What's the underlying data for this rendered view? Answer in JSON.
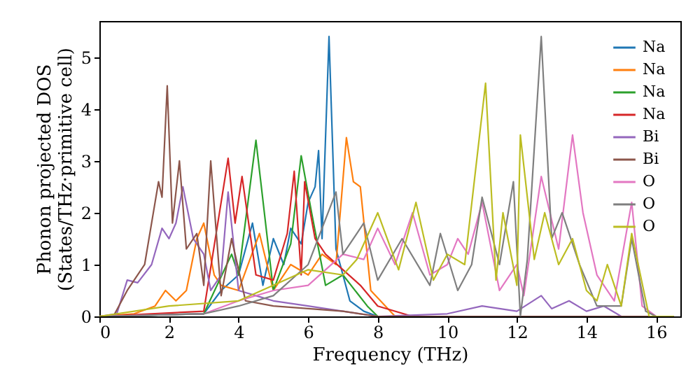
{
  "chart_data": {
    "type": "line",
    "xlabel": "Frequency (THz)",
    "ylabel": "Phonon projected DOS\n(States/THz·primitive cell)",
    "xlim": [
      0,
      16.7
    ],
    "ylim": [
      0,
      5.7
    ],
    "xticks": [
      0,
      2,
      4,
      6,
      8,
      10,
      12,
      14,
      16
    ],
    "yticks": [
      0,
      1,
      2,
      3,
      4,
      5
    ],
    "grid": false,
    "legend": "top right",
    "marker": "none",
    "line_style": "solid",
    "series": [
      {
        "name": "Na",
        "color": "#1f77b4",
        "x": [
          0,
          3,
          3.5,
          4.0,
          4.4,
          4.7,
          5,
          5.3,
          5.5,
          5.8,
          6.0,
          6.2,
          6.3,
          6.4,
          6.6,
          6.8,
          7.2,
          7.6,
          8,
          16.5
        ],
        "values": [
          0,
          0.05,
          0.5,
          0.8,
          1.8,
          0.6,
          1.5,
          1.0,
          1.7,
          1.4,
          2.2,
          2.5,
          3.2,
          1.5,
          5.4,
          1.3,
          0.3,
          0.1,
          0,
          0
        ]
      },
      {
        "name": "Na",
        "color": "#ff7f0e",
        "x": [
          0,
          1,
          1.6,
          1.9,
          2.2,
          2.5,
          2.8,
          3.0,
          3.3,
          3.5,
          4.0,
          4.6,
          5,
          5.5,
          6,
          6.4,
          6.8,
          7.1,
          7.3,
          7.5,
          7.8,
          8.5,
          16.5
        ],
        "values": [
          0,
          0.05,
          0.2,
          0.5,
          0.3,
          0.5,
          1.5,
          1.8,
          0.8,
          0.6,
          0.5,
          1.6,
          0.5,
          1.0,
          0.8,
          1.2,
          1.0,
          3.45,
          2.6,
          2.5,
          0.5,
          0,
          0
        ]
      },
      {
        "name": "Na",
        "color": "#2ca02c",
        "x": [
          0,
          3,
          3.8,
          4.0,
          4.5,
          5.0,
          5.5,
          5.8,
          6.1,
          6.5,
          7.0,
          7.7,
          8,
          16.5
        ],
        "values": [
          0,
          0.05,
          1.2,
          0.8,
          3.4,
          0.5,
          1.4,
          3.1,
          2.0,
          0.6,
          0.8,
          0.2,
          0,
          0
        ]
      },
      {
        "name": "Na",
        "color": "#d62728",
        "x": [
          0,
          3,
          3.7,
          3.9,
          4.1,
          4.5,
          5.0,
          5.4,
          5.6,
          5.8,
          5.9,
          6.2,
          6.5,
          7.0,
          7.5,
          8,
          9,
          16.5
        ],
        "values": [
          0,
          0.1,
          3.05,
          1.8,
          2.7,
          0.8,
          0.7,
          1.6,
          2.8,
          0.8,
          2.6,
          1.5,
          1.2,
          0.9,
          0.6,
          0.2,
          0,
          0
        ]
      },
      {
        "name": "Bi",
        "color": "#9467bd",
        "x": [
          0,
          0.5,
          0.8,
          1.1,
          1.5,
          1.8,
          2.0,
          2.2,
          2.4,
          2.7,
          3.0,
          3.2,
          3.5,
          3.7,
          4.0,
          4.5,
          5,
          6,
          7,
          8,
          10,
          11,
          12,
          12.7,
          13,
          13.5,
          14,
          14.5,
          15,
          16.5
        ],
        "values": [
          0,
          0.05,
          0.7,
          0.65,
          1.0,
          1.7,
          1.5,
          1.8,
          2.5,
          1.5,
          1.2,
          0.5,
          0.8,
          2.4,
          0.5,
          0.4,
          0.3,
          0.2,
          0.1,
          0,
          0.05,
          0.2,
          0.1,
          0.4,
          0.15,
          0.3,
          0.1,
          0.2,
          0,
          0
        ]
      },
      {
        "name": "Bi",
        "color": "#8c564b",
        "x": [
          0,
          0.4,
          0.8,
          1.3,
          1.6,
          1.7,
          1.8,
          1.95,
          2.1,
          2.3,
          2.5,
          2.8,
          3.0,
          3.2,
          3.5,
          3.8,
          4.2,
          5,
          6,
          7,
          8,
          16.5
        ],
        "values": [
          0,
          0,
          0.5,
          1.0,
          2.2,
          2.6,
          2.3,
          4.45,
          1.8,
          3.0,
          1.3,
          1.6,
          0.6,
          3.0,
          0.4,
          1.5,
          0.3,
          0.2,
          0.15,
          0.1,
          0,
          0
        ]
      },
      {
        "name": "O",
        "color": "#e377c2",
        "x": [
          0,
          3,
          4,
          5,
          6,
          7,
          7.6,
          8,
          8.5,
          9,
          9.5,
          10,
          10.3,
          10.6,
          11,
          11.5,
          12,
          12.2,
          12.7,
          13.2,
          13.6,
          13.9,
          14.3,
          14.8,
          15.3,
          15.6,
          16,
          16.5
        ],
        "values": [
          0,
          0.05,
          0.3,
          0.5,
          0.6,
          1.2,
          1.1,
          1.7,
          1.0,
          2.0,
          0.8,
          1.0,
          1.5,
          1.2,
          2.2,
          0.5,
          1.0,
          0.4,
          2.7,
          1.3,
          3.5,
          2.0,
          0.8,
          0.3,
          2.2,
          0.2,
          0,
          0
        ]
      },
      {
        "name": "O",
        "color": "#7f7f7f",
        "x": [
          0,
          3,
          4,
          5,
          6,
          6.8,
          7,
          7.6,
          8,
          8.7,
          9.5,
          9.8,
          10.3,
          10.7,
          11,
          11.5,
          11.9,
          12.1,
          12.3,
          12.7,
          13.0,
          13.3,
          13.8,
          14.3,
          15,
          15.3,
          15.7,
          16,
          16.5
        ],
        "values": [
          0,
          0.05,
          0.2,
          0.4,
          1.0,
          2.4,
          1.2,
          1.8,
          0.7,
          1.5,
          0.6,
          1.6,
          0.5,
          1.0,
          2.3,
          1.0,
          2.6,
          0,
          1.1,
          5.4,
          1.5,
          2.0,
          1.0,
          0.2,
          0.2,
          1.5,
          0.1,
          0,
          0
        ]
      },
      {
        "name": "O",
        "color": "#bcbd22",
        "x": [
          0,
          2,
          4,
          5,
          6,
          7,
          7.4,
          8,
          8.6,
          9.1,
          9.6,
          10,
          10.5,
          11.1,
          11.4,
          11.6,
          12.0,
          12.1,
          12.5,
          12.8,
          13.2,
          13.6,
          14.0,
          14.3,
          14.6,
          15,
          15.3,
          15.8,
          16.5
        ],
        "values": [
          0,
          0.2,
          0.3,
          0.6,
          0.9,
          0.8,
          1.1,
          2.0,
          0.9,
          2.2,
          0.7,
          1.2,
          1.0,
          4.5,
          0.7,
          2.0,
          0.6,
          3.5,
          1.1,
          2.0,
          1.0,
          1.5,
          0.5,
          0.3,
          1.0,
          0.2,
          1.6,
          0,
          0
        ]
      }
    ]
  }
}
